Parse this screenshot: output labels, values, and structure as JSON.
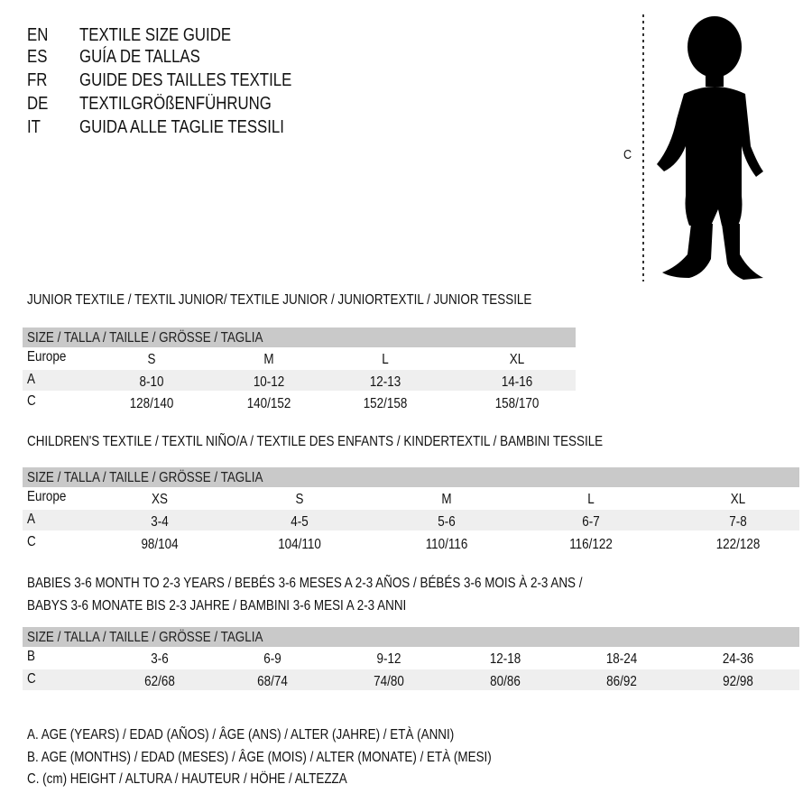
{
  "header": {
    "languages": [
      {
        "code": "EN",
        "title": "TEXTILE SIZE GUIDE"
      },
      {
        "code": "ES",
        "title": "GUÍA DE TALLAS"
      },
      {
        "code": "FR",
        "title": "GUIDE DES TAILLES TEXTILE"
      },
      {
        "code": "DE",
        "title": "TEXTILGRÖßENFÜHRUNG"
      },
      {
        "code": "IT",
        "title": "GUIDA ALLE TAGLIE TESSILI"
      }
    ]
  },
  "figure": {
    "measure_label": "C",
    "icon": "child-silhouette"
  },
  "tables": [
    {
      "title": [
        "JUNIOR TEXTILE / TEXTIL JUNIOR/ TEXTILE JUNIOR / JUNIORTEXTIL / JUNIOR TESSILE"
      ],
      "header": "SIZE / TALLA / TAILLE / GRÖSSE / TAGLIA",
      "rows": [
        {
          "label": "Europe",
          "values": [
            "S",
            "M",
            "L",
            "XL"
          ]
        },
        {
          "label": "A",
          "values": [
            "8-10",
            "10-12",
            "12-13",
            "14-16"
          ]
        },
        {
          "label": "C",
          "values": [
            "128/140",
            "140/152",
            "152/158",
            "158/170"
          ]
        }
      ]
    },
    {
      "title": [
        "CHILDREN'S TEXTILE / TEXTIL NIÑO/A / TEXTILE DES ENFANTS / KINDERTEXTIL / BAMBINI TESSILE"
      ],
      "header": "SIZE / TALLA / TAILLE / GRÖSSE / TAGLIA",
      "rows": [
        {
          "label": "Europe",
          "values": [
            "XS",
            "S",
            "M",
            "L",
            "XL"
          ]
        },
        {
          "label": "A",
          "values": [
            "3-4",
            "4-5",
            "5-6",
            "6-7",
            "7-8"
          ]
        },
        {
          "label": "C",
          "values": [
            "98/104",
            "104/110",
            "110/116",
            "116/122",
            "122/128"
          ]
        }
      ]
    },
    {
      "title": [
        "BABIES 3-6 MONTH TO 2-3 YEARS / BEBÉS 3-6 MESES A 2-3 AÑOS / BÉBÉS 3-6 MOIS À 2-3 ANS /",
        "BABYS 3-6 MONATE BIS 2-3 JAHRE / BAMBINI 3-6 MESI A 2-3 ANNI"
      ],
      "header": "SIZE / TALLA / TAILLE / GRÖSSE / TAGLIA",
      "rows": [
        {
          "label": "B",
          "values": [
            "3-6",
            "6-9",
            "9-12",
            "12-18",
            "18-24",
            "24-36"
          ]
        },
        {
          "label": "C",
          "values": [
            "62/68",
            "68/74",
            "74/80",
            "80/86",
            "86/92",
            "92/98"
          ]
        }
      ]
    }
  ],
  "legend": [
    "A. AGE (YEARS) / EDAD (AÑOS) / ÂGE (ANS) / ALTER (JAHRE) / ETÀ (ANNI)",
    "B. AGE (MONTHS) / EDAD (MESES) / ÂGE (MOIS) / ALTER (MONATE) / ETÀ (MESI)",
    "C. (cm) HEIGHT / ALTURA / HAUTEUR / HÖHE / ALTEZZA"
  ]
}
